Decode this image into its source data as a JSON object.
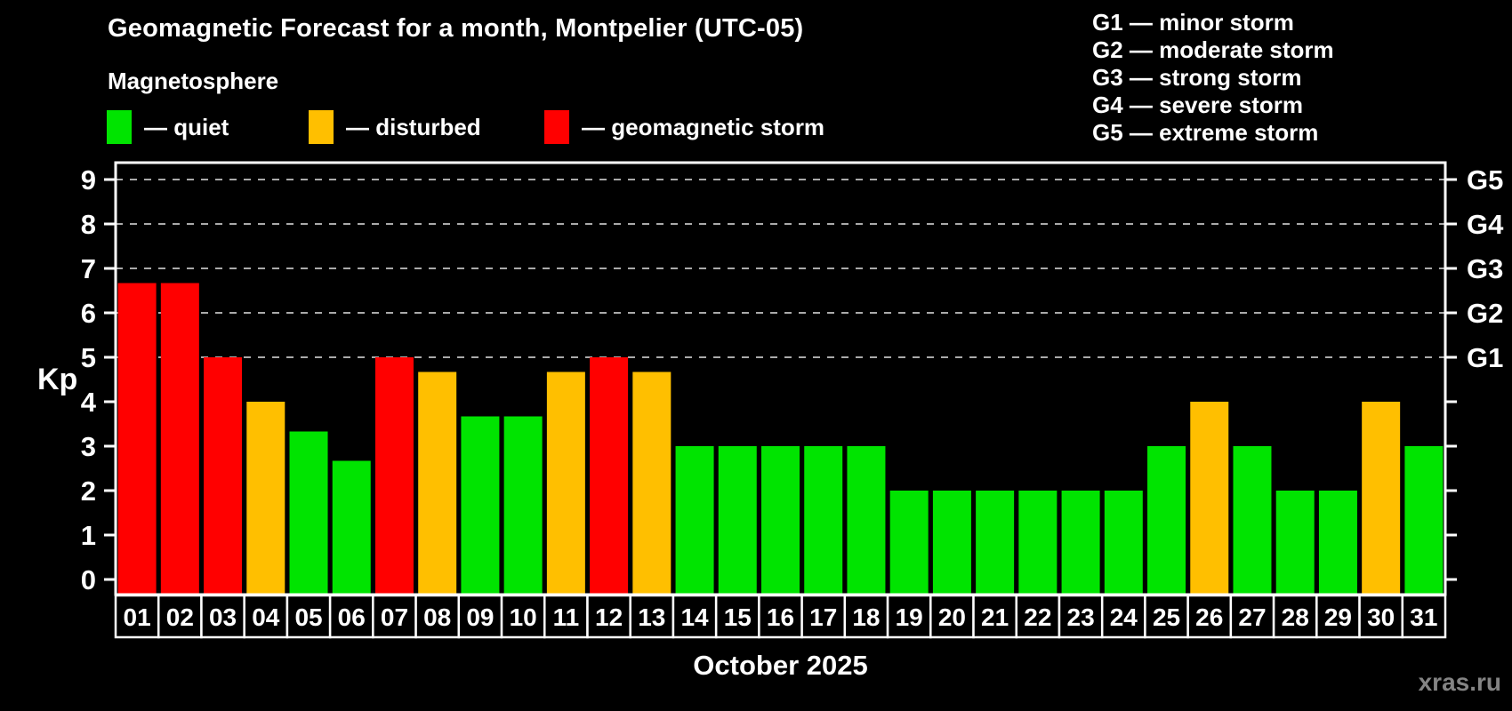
{
  "header": {
    "title": "Geomagnetic Forecast for a month, Montpelier (UTC-05)",
    "subtitle": "Magnetosphere"
  },
  "legend": {
    "items": [
      {
        "key": "quiet",
        "label": "— quiet",
        "color": "#00E400",
        "x": 120
      },
      {
        "key": "disturbed",
        "label": "— disturbed",
        "color": "#FFBF00",
        "x": 347
      },
      {
        "key": "storm",
        "label": "— geomagnetic storm",
        "color": "#FF0000",
        "x": 612
      }
    ]
  },
  "g_scale_legend": {
    "lines": [
      "G1 — minor storm",
      "G2 — moderate storm",
      "G3 — strong storm",
      "G4 — severe storm",
      "G5 — extreme storm"
    ]
  },
  "y_axis": {
    "label": "Kp",
    "ticks": [
      0,
      1,
      2,
      3,
      4,
      5,
      6,
      7,
      8,
      9
    ]
  },
  "right_axis": {
    "labels": [
      {
        "value": 5,
        "label": "G1"
      },
      {
        "value": 6,
        "label": "G2"
      },
      {
        "value": 7,
        "label": "G3"
      },
      {
        "value": 8,
        "label": "G4"
      },
      {
        "value": 9,
        "label": "G5"
      }
    ]
  },
  "x_axis": {
    "month_label": "October 2025"
  },
  "watermark": "xras.ru",
  "chart_data": {
    "type": "bar",
    "title": "Geomagnetic Forecast for a month, Montpelier (UTC-05)",
    "subtitle": "Magnetosphere",
    "xlabel": "October 2025",
    "ylabel": "Kp",
    "ylim": [
      0,
      9
    ],
    "grid": "dashed horizontal at Kp 5-9 only",
    "grid_levels": [
      5,
      6,
      7,
      8,
      9
    ],
    "categories": [
      "01",
      "02",
      "03",
      "04",
      "05",
      "06",
      "07",
      "08",
      "09",
      "10",
      "11",
      "12",
      "13",
      "14",
      "15",
      "16",
      "17",
      "18",
      "19",
      "20",
      "21",
      "22",
      "23",
      "24",
      "25",
      "26",
      "27",
      "28",
      "29",
      "30",
      "31"
    ],
    "values": [
      6.67,
      6.67,
      5,
      4,
      3.33,
      2.67,
      5,
      4.67,
      3.67,
      3.67,
      4.67,
      5,
      4.67,
      3,
      3,
      3,
      3,
      3,
      2,
      2,
      2,
      2,
      2,
      2,
      3,
      4,
      3,
      2,
      2,
      4,
      3
    ],
    "statuses": [
      "storm",
      "storm",
      "storm",
      "disturbed",
      "quiet",
      "quiet",
      "storm",
      "disturbed",
      "quiet",
      "quiet",
      "disturbed",
      "storm",
      "disturbed",
      "quiet",
      "quiet",
      "quiet",
      "quiet",
      "quiet",
      "quiet",
      "quiet",
      "quiet",
      "quiet",
      "quiet",
      "quiet",
      "quiet",
      "disturbed",
      "quiet",
      "quiet",
      "quiet",
      "disturbed",
      "quiet"
    ],
    "colors": {
      "quiet": "#00E400",
      "disturbed": "#FFBF00",
      "storm": "#FF0000"
    },
    "legend_position": "top-left",
    "axis_color": "#FFFFFF",
    "gridline_color": "#AAAAAA",
    "background": "#000000"
  }
}
